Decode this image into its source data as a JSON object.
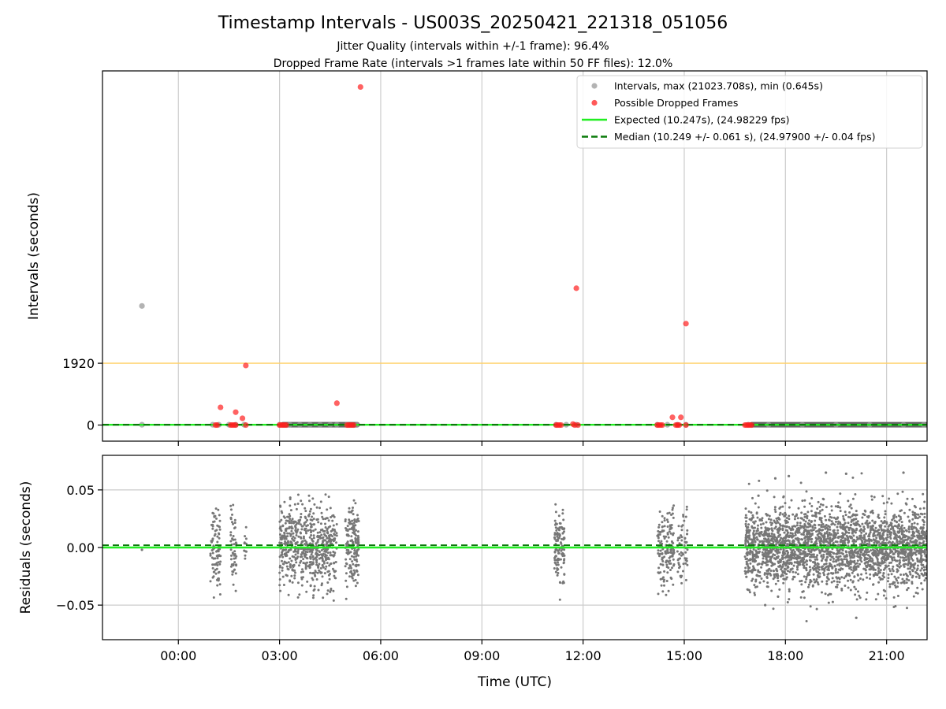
{
  "figure": {
    "title": "Timestamp Intervals - US003S_20250421_221318_051056",
    "subtitle_lines": [
      "Jitter Quality (intervals within +/-1 frame): 96.4%",
      "Dropped Frame Rate (intervals >1 frames late within 50 FF files): 12.0%"
    ]
  },
  "chart_data": [
    {
      "type": "scatter",
      "xlabel": "",
      "ylabel": "Intervals (seconds)",
      "x_unit": "hours (UTC) relative to 00:00",
      "xlim": [
        -2.25,
        22.2
      ],
      "ylim": [
        -500,
        11000
      ],
      "y_ticks": [
        0,
        1920
      ],
      "y_tick_labels": [
        "0",
        "1920"
      ],
      "x_ticks": [
        0,
        3,
        6,
        9,
        12,
        15,
        18,
        21
      ],
      "x_tick_labels": [
        "00:00",
        "03:00",
        "06:00",
        "09:00",
        "12:00",
        "15:00",
        "18:00",
        "21:00"
      ],
      "grid": "vertical",
      "legend_position": "top-right",
      "reference_line": {
        "y": 1920,
        "color": "#ffd066"
      },
      "series": [
        {
          "name": "Intervals, max (21023.708s), min (0.645s)",
          "color": "#999999",
          "points": [
            {
              "x": -1.08,
              "y": 3700
            },
            {
              "x": -1.08,
              "y": 10
            },
            {
              "x": 1.02,
              "y": 10
            },
            {
              "x": 1.2,
              "y": 10
            },
            {
              "x": 1.5,
              "y": 10
            },
            {
              "x": 1.7,
              "y": 10
            },
            {
              "x": 1.95,
              "y": 10
            },
            {
              "x": 3.0,
              "y": 10
            },
            {
              "x": 3.3,
              "y": 10
            },
            {
              "x": 3.6,
              "y": 10
            },
            {
              "x": 3.9,
              "y": 10
            },
            {
              "x": 4.2,
              "y": 10
            },
            {
              "x": 4.5,
              "y": 10
            },
            {
              "x": 4.7,
              "y": 10
            },
            {
              "x": 5.0,
              "y": 10
            },
            {
              "x": 5.3,
              "y": 10
            },
            {
              "x": 11.2,
              "y": 10
            },
            {
              "x": 11.5,
              "y": 10
            },
            {
              "x": 11.8,
              "y": 10
            },
            {
              "x": 14.2,
              "y": 10
            },
            {
              "x": 14.5,
              "y": 10
            },
            {
              "x": 14.8,
              "y": 10
            },
            {
              "x": 15.05,
              "y": 10
            },
            {
              "x": 16.9,
              "y": 10
            },
            {
              "x": 17.5,
              "y": 10
            },
            {
              "x": 18.5,
              "y": 10
            },
            {
              "x": 19.5,
              "y": 10
            },
            {
              "x": 20.5,
              "y": 10
            },
            {
              "x": 21.5,
              "y": 10
            },
            {
              "x": 22.1,
              "y": 10
            }
          ]
        },
        {
          "name": "Possible Dropped Frames",
          "color": "#ff2020",
          "points": [
            {
              "x": 5.4,
              "y": 10500
            },
            {
              "x": 11.8,
              "y": 4250
            },
            {
              "x": 15.05,
              "y": 3150
            },
            {
              "x": 2.0,
              "y": 1850
            },
            {
              "x": 4.7,
              "y": 680
            },
            {
              "x": 1.25,
              "y": 550
            },
            {
              "x": 1.7,
              "y": 400
            },
            {
              "x": 1.9,
              "y": 210
            },
            {
              "x": 14.65,
              "y": 240
            },
            {
              "x": 14.9,
              "y": 240
            },
            {
              "x": 11.7,
              "y": 30
            },
            {
              "x": 1.1,
              "y": 0
            },
            {
              "x": 1.15,
              "y": 0
            },
            {
              "x": 1.55,
              "y": 0
            },
            {
              "x": 1.6,
              "y": 0
            },
            {
              "x": 1.65,
              "y": 0
            },
            {
              "x": 1.7,
              "y": 0
            },
            {
              "x": 2.0,
              "y": 0
            },
            {
              "x": 3.0,
              "y": 0
            },
            {
              "x": 3.05,
              "y": 0
            },
            {
              "x": 3.1,
              "y": 0
            },
            {
              "x": 3.15,
              "y": 0
            },
            {
              "x": 3.2,
              "y": 0
            },
            {
              "x": 5.0,
              "y": 0
            },
            {
              "x": 5.05,
              "y": 0
            },
            {
              "x": 5.1,
              "y": 0
            },
            {
              "x": 5.15,
              "y": 0
            },
            {
              "x": 5.2,
              "y": 0
            },
            {
              "x": 11.2,
              "y": 0
            },
            {
              "x": 11.25,
              "y": 0
            },
            {
              "x": 11.3,
              "y": 0
            },
            {
              "x": 11.35,
              "y": 0
            },
            {
              "x": 11.75,
              "y": 0
            },
            {
              "x": 11.85,
              "y": 0
            },
            {
              "x": 14.2,
              "y": 0
            },
            {
              "x": 14.25,
              "y": 0
            },
            {
              "x": 14.3,
              "y": 0
            },
            {
              "x": 14.35,
              "y": 0
            },
            {
              "x": 14.75,
              "y": 0
            },
            {
              "x": 14.8,
              "y": 0
            },
            {
              "x": 14.85,
              "y": 0
            },
            {
              "x": 15.05,
              "y": 0
            },
            {
              "x": 16.8,
              "y": 0
            },
            {
              "x": 16.85,
              "y": 0
            },
            {
              "x": 16.9,
              "y": 0
            },
            {
              "x": 16.95,
              "y": 0
            },
            {
              "x": 17.0,
              "y": 0
            }
          ]
        },
        {
          "name": "Expected (10.247s), (24.98229 fps)",
          "color": "#22ee22",
          "line_y": 10.247
        },
        {
          "name": "Median (10.249 +/- 0.061 s), (24.97900 +/- 0.04 fps)",
          "color": "#0a7a0a",
          "line_y": 10.249,
          "dash": true
        }
      ],
      "dense_bands": [
        {
          "x0": 3.1,
          "x1": 5.3,
          "y": 10,
          "color": "#666666"
        },
        {
          "x0": 17.0,
          "x1": 22.2,
          "y": 10,
          "color": "#666666"
        }
      ]
    },
    {
      "type": "scatter",
      "xlabel": "Time (UTC)",
      "ylabel": "Residuals (seconds)",
      "xlim": [
        -2.25,
        22.2
      ],
      "ylim": [
        -0.08,
        0.08
      ],
      "y_ticks": [
        0.05,
        0.0,
        -0.05
      ],
      "y_tick_labels": [
        "0.05",
        "0.00",
        "−0.05"
      ],
      "x_ticks": [
        0,
        3,
        6,
        9,
        12,
        15,
        18,
        21
      ],
      "x_tick_labels": [
        "00:00",
        "03:00",
        "06:00",
        "09:00",
        "12:00",
        "15:00",
        "18:00",
        "21:00"
      ],
      "grid": "both",
      "zero_line_color": "#22ee22",
      "median_line_y": 0.002,
      "median_line_color": "#0a7a0a",
      "point_color": "#777777",
      "clusters": [
        {
          "x0": 0.95,
          "x1": 1.25,
          "n": 90,
          "spread": 0.018,
          "max_abs": 0.045
        },
        {
          "x0": 1.55,
          "x1": 1.72,
          "n": 55,
          "spread": 0.017,
          "max_abs": 0.04
        },
        {
          "x0": 1.95,
          "x1": 2.02,
          "n": 12,
          "spread": 0.012,
          "max_abs": 0.02
        },
        {
          "x0": 3.0,
          "x1": 4.7,
          "n": 620,
          "spread": 0.018,
          "max_abs": 0.05
        },
        {
          "x0": 4.95,
          "x1": 5.35,
          "n": 170,
          "spread": 0.018,
          "max_abs": 0.045
        },
        {
          "x0": 11.15,
          "x1": 11.45,
          "n": 120,
          "spread": 0.016,
          "max_abs": 0.048
        },
        {
          "x0": 14.2,
          "x1": 14.7,
          "n": 150,
          "spread": 0.017,
          "max_abs": 0.048
        },
        {
          "x0": 14.8,
          "x1": 15.1,
          "n": 60,
          "spread": 0.016,
          "max_abs": 0.04
        },
        {
          "x0": 16.8,
          "x1": 22.2,
          "n": 2600,
          "spread": 0.017,
          "max_abs": 0.065
        }
      ],
      "isolated_points": [
        {
          "x": -1.08,
          "y": -0.002
        },
        {
          "x": 17.2,
          "y": 0.045
        },
        {
          "x": 17.4,
          "y": -0.05
        },
        {
          "x": 17.7,
          "y": 0.06
        },
        {
          "x": 18.1,
          "y": 0.062
        },
        {
          "x": 19.2,
          "y": 0.065
        },
        {
          "x": 19.8,
          "y": 0.064
        },
        {
          "x": 20.1,
          "y": -0.061
        },
        {
          "x": 21.5,
          "y": 0.065
        }
      ]
    }
  ]
}
